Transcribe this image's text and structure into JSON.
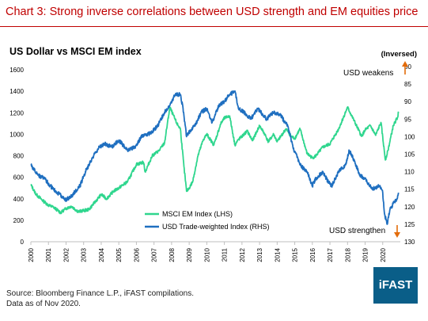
{
  "header": {
    "title": "Chart 3: Strong inverse correlations between USD strength and EM equities price"
  },
  "chart_data": {
    "type": "line",
    "title": "US Dollar vs MSCI EM index",
    "y_left": {
      "ticks": [
        "0",
        "200",
        "400",
        "600",
        "800",
        "1000",
        "1200",
        "1400",
        "1600"
      ],
      "ylim": [
        0,
        1600
      ]
    },
    "y_right": {
      "label": "(Inversed)",
      "ticks": [
        "80",
        "85",
        "90",
        "95",
        "100",
        "105",
        "110",
        "115",
        "120",
        "125",
        "130"
      ],
      "ylim": [
        80,
        130
      ],
      "inverted": true
    },
    "x_ticks": [
      "2000",
      "2001",
      "2002",
      "2003",
      "2004",
      "2005",
      "2006",
      "2007",
      "2008",
      "2009",
      "2010",
      "2011",
      "2012",
      "2013",
      "2014",
      "2015",
      "2016",
      "2017",
      "2018",
      "2019",
      "2020"
    ],
    "grid": false,
    "legend_position": "bottom-center",
    "series": [
      {
        "name": "MSCI EM Index (LHS)",
        "axis": "left",
        "color": "#2fd68e",
        "points": [
          [
            2000.0,
            530
          ],
          [
            2000.3,
            440
          ],
          [
            2000.7,
            380
          ],
          [
            2001.0,
            340
          ],
          [
            2001.3,
            320
          ],
          [
            2001.7,
            270
          ],
          [
            2002.0,
            310
          ],
          [
            2002.3,
            330
          ],
          [
            2002.7,
            280
          ],
          [
            2003.0,
            290
          ],
          [
            2003.3,
            300
          ],
          [
            2003.7,
            380
          ],
          [
            2004.0,
            440
          ],
          [
            2004.3,
            400
          ],
          [
            2004.7,
            470
          ],
          [
            2005.0,
            500
          ],
          [
            2005.5,
            560
          ],
          [
            2006.0,
            720
          ],
          [
            2006.4,
            740
          ],
          [
            2006.5,
            650
          ],
          [
            2006.9,
            800
          ],
          [
            2007.3,
            850
          ],
          [
            2007.6,
            920
          ],
          [
            2007.9,
            1250
          ],
          [
            2008.3,
            1100
          ],
          [
            2008.5,
            1050
          ],
          [
            2008.7,
            700
          ],
          [
            2008.85,
            470
          ],
          [
            2009.0,
            500
          ],
          [
            2009.2,
            560
          ],
          [
            2009.5,
            800
          ],
          [
            2009.8,
            950
          ],
          [
            2010.0,
            1000
          ],
          [
            2010.4,
            900
          ],
          [
            2010.8,
            1100
          ],
          [
            2011.0,
            1150
          ],
          [
            2011.3,
            1170
          ],
          [
            2011.6,
            900
          ],
          [
            2011.8,
            950
          ],
          [
            2012.0,
            980
          ],
          [
            2012.3,
            1030
          ],
          [
            2012.6,
            940
          ],
          [
            2013.0,
            1080
          ],
          [
            2013.3,
            1000
          ],
          [
            2013.5,
            930
          ],
          [
            2013.8,
            1000
          ],
          [
            2014.0,
            930
          ],
          [
            2014.5,
            1050
          ],
          [
            2014.8,
            980
          ],
          [
            2015.0,
            960
          ],
          [
            2015.3,
            1050
          ],
          [
            2015.7,
            820
          ],
          [
            2016.0,
            780
          ],
          [
            2016.2,
            800
          ],
          [
            2016.6,
            880
          ],
          [
            2017.0,
            910
          ],
          [
            2017.5,
            1050
          ],
          [
            2018.0,
            1250
          ],
          [
            2018.3,
            1150
          ],
          [
            2018.8,
            980
          ],
          [
            2019.0,
            1040
          ],
          [
            2019.3,
            1080
          ],
          [
            2019.6,
            990
          ],
          [
            2019.9,
            1110
          ],
          [
            2020.15,
            760
          ],
          [
            2020.3,
            850
          ],
          [
            2020.6,
            1080
          ],
          [
            2020.85,
            1160
          ],
          [
            2020.9,
            1210
          ]
        ]
      },
      {
        "name": "USD Trade-weighted Index (RHS)",
        "axis": "right",
        "color": "#1f6fc0",
        "points": [
          [
            2000.0,
            108
          ],
          [
            2000.4,
            111
          ],
          [
            2000.8,
            112
          ],
          [
            2001.1,
            114
          ],
          [
            2001.5,
            116
          ],
          [
            2002.0,
            118
          ],
          [
            2002.3,
            117
          ],
          [
            2002.8,
            114
          ],
          [
            2003.1,
            110
          ],
          [
            2003.5,
            106
          ],
          [
            2003.9,
            103
          ],
          [
            2004.2,
            102
          ],
          [
            2004.6,
            103
          ],
          [
            2005.0,
            101
          ],
          [
            2005.5,
            104
          ],
          [
            2005.9,
            103
          ],
          [
            2006.3,
            100
          ],
          [
            2006.8,
            99
          ],
          [
            2007.2,
            97
          ],
          [
            2007.6,
            93
          ],
          [
            2007.9,
            91
          ],
          [
            2008.2,
            88
          ],
          [
            2008.5,
            88
          ],
          [
            2008.65,
            92
          ],
          [
            2008.85,
            100
          ],
          [
            2009.1,
            98
          ],
          [
            2009.3,
            97
          ],
          [
            2009.7,
            93
          ],
          [
            2010.0,
            92
          ],
          [
            2010.3,
            96
          ],
          [
            2010.7,
            91
          ],
          [
            2011.0,
            90
          ],
          [
            2011.3,
            88
          ],
          [
            2011.6,
            87
          ],
          [
            2011.8,
            92
          ],
          [
            2012.1,
            93
          ],
          [
            2012.5,
            95
          ],
          [
            2012.9,
            92
          ],
          [
            2013.4,
            95
          ],
          [
            2013.8,
            93
          ],
          [
            2014.2,
            94
          ],
          [
            2014.6,
            97
          ],
          [
            2014.9,
            103
          ],
          [
            2015.3,
            108
          ],
          [
            2015.7,
            110
          ],
          [
            2016.0,
            114
          ],
          [
            2016.2,
            112
          ],
          [
            2016.6,
            110
          ],
          [
            2016.9,
            113
          ],
          [
            2017.1,
            114
          ],
          [
            2017.5,
            110
          ],
          [
            2017.9,
            108
          ],
          [
            2018.1,
            104
          ],
          [
            2018.3,
            106
          ],
          [
            2018.7,
            111
          ],
          [
            2019.0,
            112
          ],
          [
            2019.4,
            115
          ],
          [
            2019.8,
            114
          ],
          [
            2020.0,
            116
          ],
          [
            2020.1,
            122
          ],
          [
            2020.25,
            125
          ],
          [
            2020.4,
            121
          ],
          [
            2020.6,
            119
          ],
          [
            2020.8,
            118
          ],
          [
            2020.9,
            116
          ]
        ]
      }
    ],
    "annotations": {
      "top": "USD weakens",
      "bottom": "USD strengthen"
    }
  },
  "footer": {
    "source": "Source: Bloomberg Finance L.P., iFAST compilations.",
    "asof": "Data as of Nov 2020."
  },
  "logo": {
    "text": "iFAST"
  },
  "colors": {
    "title": "#c00000",
    "arrow": "#e36c0a",
    "logo_bg": "#0a5e88"
  }
}
